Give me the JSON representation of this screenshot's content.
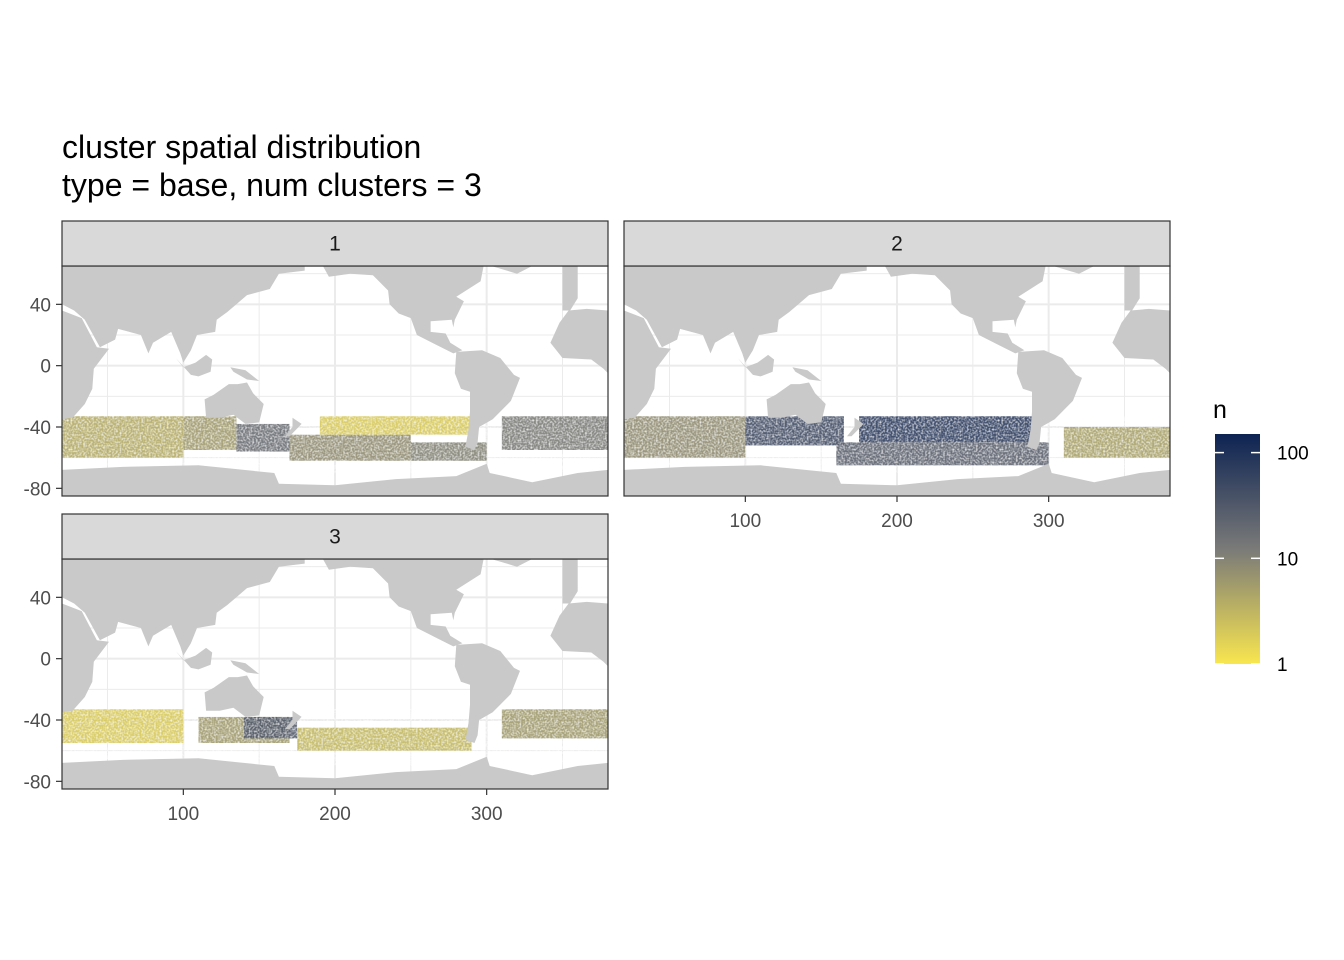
{
  "chart_data": {
    "type": "heatmap",
    "title": "cluster spatial distribution",
    "subtitle": "type = base, num clusters = 3",
    "xlim": [
      20,
      380
    ],
    "ylim": [
      -85,
      65
    ],
    "x_ticks": [
      100,
      200,
      300
    ],
    "y_ticks": [
      40,
      0,
      -40,
      -80
    ],
    "grid": true,
    "fill_scale": "log10",
    "legend": {
      "title": "n",
      "position": "right",
      "breaks": [
        100,
        10,
        1
      ],
      "labels": [
        "100",
        "10",
        "1"
      ],
      "low_color": "#f9e64f",
      "mid_color": "#7a7a78",
      "high_color": "#0d2352",
      "limits": [
        1,
        150
      ]
    },
    "colors": {
      "land": "#c9c9c9",
      "ocean": "#ffffff",
      "grid": "#ebebeb",
      "strip": "#d9d9d9",
      "panel_border": "#333333"
    },
    "data_band_lat": [
      -33,
      -70
    ],
    "panels": [
      {
        "label": "1",
        "density": [
          {
            "lon": [
              20,
              100
            ],
            "lat": [
              -33,
              -60
            ],
            "n": 4
          },
          {
            "lon": [
              100,
              135
            ],
            "lat": [
              -33,
              -55
            ],
            "n": 6
          },
          {
            "lon": [
              135,
              170
            ],
            "lat": [
              -38,
              -56
            ],
            "n": 18
          },
          {
            "lon": [
              170,
              250
            ],
            "lat": [
              -45,
              -62
            ],
            "n": 8
          },
          {
            "lon": [
              250,
              300
            ],
            "lat": [
              -50,
              -62
            ],
            "n": 10
          },
          {
            "lon": [
              310,
              380
            ],
            "lat": [
              -33,
              -55
            ],
            "n": 12
          },
          {
            "lon": [
              190,
              290
            ],
            "lat": [
              -33,
              -45
            ],
            "n": 2
          }
        ]
      },
      {
        "label": "2",
        "density": [
          {
            "lon": [
              20,
              100
            ],
            "lat": [
              -33,
              -60
            ],
            "n": 8
          },
          {
            "lon": [
              100,
              165
            ],
            "lat": [
              -33,
              -52
            ],
            "n": 45
          },
          {
            "lon": [
              175,
              290
            ],
            "lat": [
              -33,
              -50
            ],
            "n": 70
          },
          {
            "lon": [
              160,
              300
            ],
            "lat": [
              -50,
              -65
            ],
            "n": 25
          },
          {
            "lon": [
              310,
              380
            ],
            "lat": [
              -40,
              -60
            ],
            "n": 5
          }
        ]
      },
      {
        "label": "3",
        "density": [
          {
            "lon": [
              20,
              100
            ],
            "lat": [
              -33,
              -55
            ],
            "n": 2
          },
          {
            "lon": [
              110,
              170
            ],
            "lat": [
              -38,
              -55
            ],
            "n": 6
          },
          {
            "lon": [
              140,
              175
            ],
            "lat": [
              -38,
              -52
            ],
            "n": 30
          },
          {
            "lon": [
              175,
              290
            ],
            "lat": [
              -45,
              -60
            ],
            "n": 3
          },
          {
            "lon": [
              310,
              380
            ],
            "lat": [
              -33,
              -52
            ],
            "n": 6
          }
        ]
      }
    ]
  }
}
